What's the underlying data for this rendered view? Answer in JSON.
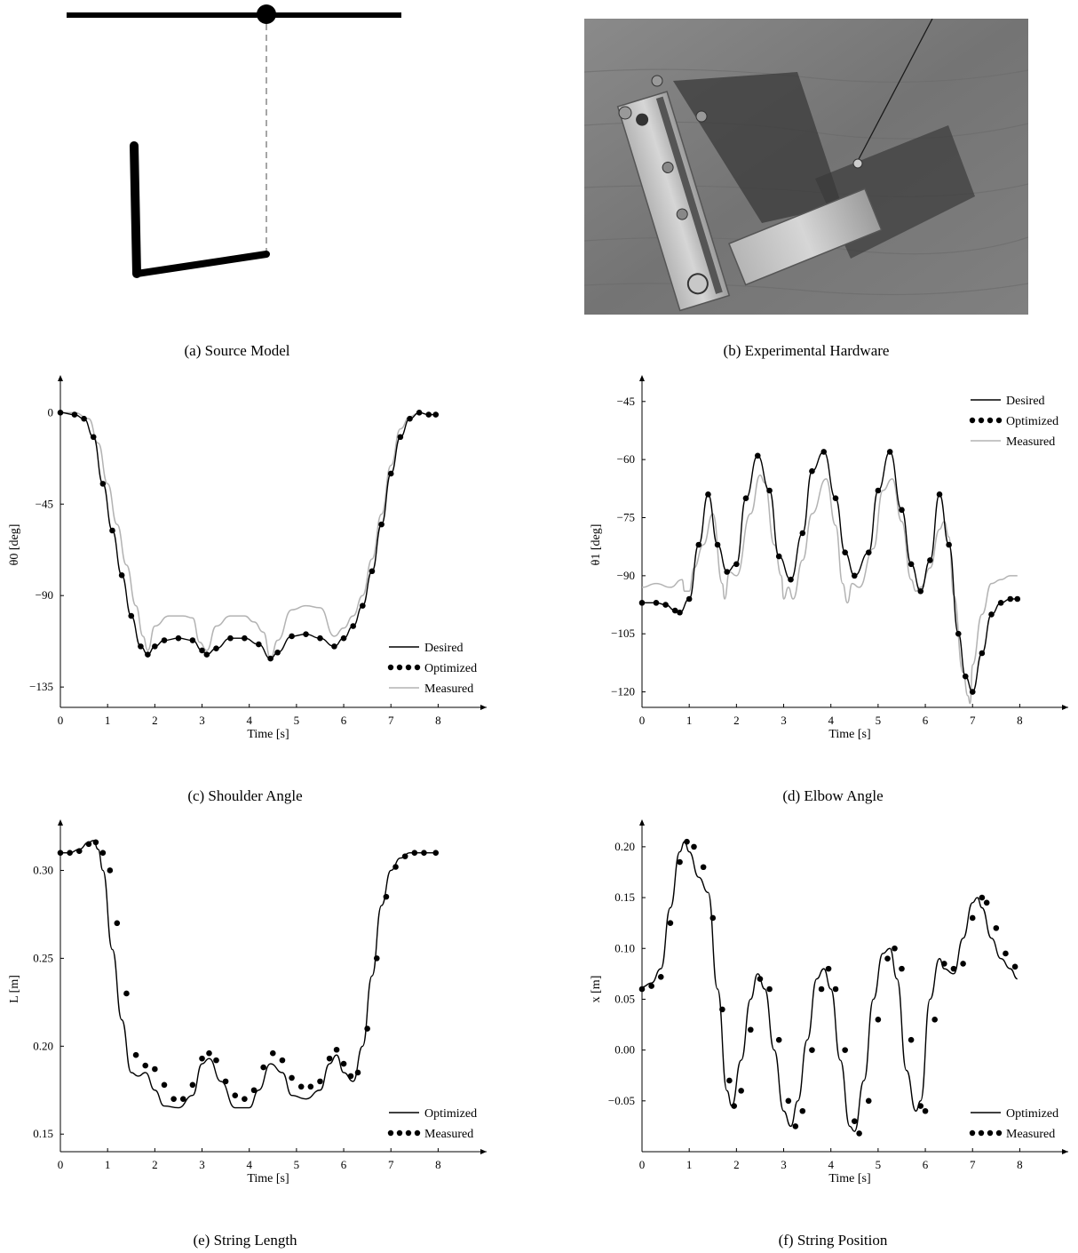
{
  "captions": {
    "a": "(a) Source Model",
    "b": "(b) Experimental Hardware",
    "c": "(c) Shoulder Angle",
    "d": "(d) Elbow Angle",
    "e": "(e) String Length",
    "f": "(f) String Position"
  },
  "chart_data": [
    {
      "id": "c",
      "type": "line",
      "xlabel": "Time [s]",
      "ylabel": "θ0 [deg]",
      "xlim": [
        0,
        8.5
      ],
      "ylim": [
        -145,
        15
      ],
      "xticks": [
        0,
        1,
        2,
        3,
        4,
        5,
        6,
        7,
        8
      ],
      "yticks": [
        0,
        -45,
        -90,
        -135
      ],
      "legend_position": "bottom-right",
      "series": [
        {
          "name": "Desired",
          "style": "solid",
          "color": "#000000",
          "x": [
            0,
            0.3,
            0.5,
            0.7,
            0.9,
            1.1,
            1.3,
            1.5,
            1.7,
            1.85,
            2.0,
            2.2,
            2.5,
            2.8,
            3.0,
            3.1,
            3.3,
            3.6,
            3.9,
            4.2,
            4.45,
            4.6,
            4.9,
            5.2,
            5.5,
            5.8,
            6.0,
            6.2,
            6.4,
            6.6,
            6.8,
            7.0,
            7.2,
            7.4,
            7.6,
            7.8,
            7.95
          ],
          "y": [
            0,
            -1,
            -3,
            -12,
            -35,
            -58,
            -80,
            -100,
            -115,
            -119,
            -115,
            -112,
            -111,
            -112,
            -117,
            -119,
            -116,
            -111,
            -111,
            -114,
            -121,
            -118,
            -110,
            -109,
            -111,
            -115,
            -111,
            -105,
            -95,
            -78,
            -55,
            -30,
            -12,
            -3,
            0,
            -1,
            -1
          ]
        },
        {
          "name": "Optimized",
          "style": "dots",
          "color": "#000000",
          "x": [
            0,
            0.3,
            0.5,
            0.7,
            0.9,
            1.1,
            1.3,
            1.5,
            1.7,
            1.85,
            2.0,
            2.2,
            2.5,
            2.8,
            3.0,
            3.1,
            3.3,
            3.6,
            3.9,
            4.2,
            4.45,
            4.6,
            4.9,
            5.2,
            5.5,
            5.8,
            6.0,
            6.2,
            6.4,
            6.6,
            6.8,
            7.0,
            7.2,
            7.4,
            7.6,
            7.8,
            7.95
          ],
          "y": [
            0,
            -1,
            -3,
            -12,
            -35,
            -58,
            -80,
            -100,
            -115,
            -119,
            -115,
            -112,
            -111,
            -112,
            -117,
            -119,
            -116,
            -111,
            -111,
            -114,
            -121,
            -118,
            -110,
            -109,
            -111,
            -115,
            -111,
            -105,
            -95,
            -78,
            -55,
            -30,
            -12,
            -3,
            0,
            -1,
            -1
          ]
        },
        {
          "name": "Measured",
          "style": "solid",
          "color": "#b3b3b3",
          "x": [
            0,
            0.3,
            0.6,
            0.8,
            1.0,
            1.2,
            1.4,
            1.6,
            1.75,
            1.85,
            2.0,
            2.3,
            2.6,
            2.8,
            2.95,
            3.1,
            3.3,
            3.6,
            3.9,
            4.1,
            4.3,
            4.45,
            4.6,
            4.9,
            5.2,
            5.5,
            5.8,
            6.0,
            6.2,
            6.4,
            6.6,
            6.8,
            7.0,
            7.2,
            7.4,
            7.6,
            7.8,
            7.95
          ],
          "y": [
            0,
            0,
            -3,
            -15,
            -35,
            -55,
            -75,
            -95,
            -110,
            -117,
            -105,
            -100,
            -100,
            -101,
            -113,
            -117,
            -105,
            -100,
            -100,
            -103,
            -108,
            -121,
            -112,
            -97,
            -95,
            -96,
            -110,
            -106,
            -100,
            -90,
            -72,
            -50,
            -26,
            -8,
            -2,
            0,
            -1,
            -1
          ]
        }
      ]
    },
    {
      "id": "d",
      "type": "line",
      "xlabel": "Time [s]",
      "ylabel": "θ1 [deg]",
      "xlim": [
        0,
        8.5
      ],
      "ylim": [
        -124,
        -40
      ],
      "xticks": [
        0,
        1,
        2,
        3,
        4,
        5,
        6,
        7,
        8
      ],
      "yticks": [
        -45,
        -60,
        -75,
        -90,
        -105,
        -120
      ],
      "legend_position": "top-right",
      "series": [
        {
          "name": "Desired",
          "style": "solid",
          "color": "#000000",
          "x": [
            0,
            0.3,
            0.5,
            0.7,
            0.8,
            1.0,
            1.2,
            1.4,
            1.6,
            1.8,
            2.0,
            2.2,
            2.45,
            2.7,
            2.9,
            3.15,
            3.4,
            3.6,
            3.85,
            4.1,
            4.3,
            4.5,
            4.8,
            5.0,
            5.25,
            5.5,
            5.7,
            5.9,
            6.1,
            6.3,
            6.5,
            6.7,
            6.85,
            7.0,
            7.2,
            7.4,
            7.6,
            7.8,
            7.95
          ],
          "y": [
            -97,
            -97,
            -97.5,
            -99,
            -99.5,
            -96,
            -82,
            -69,
            -82,
            -89,
            -87,
            -70,
            -59,
            -68,
            -85,
            -91,
            -79,
            -63,
            -58,
            -70,
            -84,
            -90,
            -84,
            -68,
            -58,
            -73,
            -87,
            -94,
            -86,
            -69,
            -82,
            -105,
            -116,
            -120,
            -110,
            -100,
            -97,
            -96,
            -96
          ]
        },
        {
          "name": "Optimized",
          "style": "dots",
          "color": "#000000",
          "x": [
            0,
            0.3,
            0.5,
            0.7,
            0.8,
            1.0,
            1.2,
            1.4,
            1.6,
            1.8,
            2.0,
            2.2,
            2.45,
            2.7,
            2.9,
            3.15,
            3.4,
            3.6,
            3.85,
            4.1,
            4.3,
            4.5,
            4.8,
            5.0,
            5.25,
            5.5,
            5.7,
            5.9,
            6.1,
            6.3,
            6.5,
            6.7,
            6.85,
            7.0,
            7.2,
            7.4,
            7.6,
            7.8,
            7.95
          ],
          "y": [
            -97,
            -97,
            -97.5,
            -99,
            -99.5,
            -96,
            -82,
            -69,
            -82,
            -89,
            -87,
            -70,
            -59,
            -68,
            -85,
            -91,
            -79,
            -63,
            -58,
            -70,
            -84,
            -90,
            -84,
            -68,
            -58,
            -73,
            -87,
            -94,
            -86,
            -69,
            -82,
            -105,
            -116,
            -120,
            -110,
            -100,
            -97,
            -96,
            -96
          ]
        },
        {
          "name": "Measured",
          "style": "solid",
          "color": "#b3b3b3",
          "x": [
            0,
            0.3,
            0.6,
            0.85,
            0.9,
            1.0,
            1.1,
            1.3,
            1.5,
            1.7,
            1.75,
            1.85,
            2.0,
            2.3,
            2.5,
            2.6,
            2.8,
            2.95,
            3.0,
            3.1,
            3.2,
            3.4,
            3.6,
            3.9,
            4.1,
            4.25,
            4.35,
            4.45,
            4.6,
            4.9,
            5.1,
            5.3,
            5.5,
            5.7,
            5.8,
            5.9,
            6.1,
            6.3,
            6.4,
            6.5,
            6.6,
            6.8,
            6.9,
            6.95,
            7.0,
            7.2,
            7.4,
            7.6,
            7.8,
            7.95
          ],
          "y": [
            -93,
            -92,
            -93,
            -91,
            -94,
            -94,
            -88,
            -82,
            -74,
            -92,
            -96,
            -89,
            -90,
            -74,
            -64,
            -66,
            -82,
            -90,
            -96,
            -93,
            -96,
            -86,
            -74,
            -65,
            -77,
            -92,
            -97,
            -92,
            -93,
            -83,
            -68,
            -65,
            -76,
            -91,
            -94,
            -93,
            -88,
            -78,
            -76,
            -80,
            -95,
            -115,
            -121,
            -123,
            -113,
            -100,
            -92,
            -91,
            -90,
            -90
          ]
        }
      ]
    },
    {
      "id": "e",
      "type": "line",
      "xlabel": "Time [s]",
      "ylabel": "L [m]",
      "xlim": [
        0,
        8.5
      ],
      "ylim": [
        0.14,
        0.325
      ],
      "xticks": [
        0,
        1,
        2,
        3,
        4,
        5,
        6,
        7,
        8
      ],
      "yticks": [
        0.15,
        0.2,
        0.25,
        0.3
      ],
      "legend_position": "bottom-right",
      "series": [
        {
          "name": "Optimized",
          "style": "solid",
          "color": "#000000",
          "x": [
            0,
            0.2,
            0.4,
            0.6,
            0.7,
            0.8,
            0.9,
            1.1,
            1.3,
            1.5,
            1.65,
            1.8,
            2.0,
            2.2,
            2.5,
            2.8,
            3.0,
            3.15,
            3.4,
            3.7,
            4.0,
            4.2,
            4.45,
            4.7,
            4.9,
            5.2,
            5.5,
            5.7,
            5.85,
            6.0,
            6.2,
            6.4,
            6.6,
            6.8,
            7.0,
            7.2,
            7.4,
            7.6,
            7.8,
            7.95
          ],
          "y": [
            0.31,
            0.31,
            0.312,
            0.316,
            0.317,
            0.312,
            0.3,
            0.255,
            0.215,
            0.185,
            0.183,
            0.185,
            0.175,
            0.166,
            0.165,
            0.172,
            0.19,
            0.193,
            0.18,
            0.165,
            0.165,
            0.175,
            0.19,
            0.185,
            0.172,
            0.17,
            0.175,
            0.19,
            0.195,
            0.185,
            0.18,
            0.2,
            0.24,
            0.28,
            0.3,
            0.307,
            0.31,
            0.31,
            0.31,
            0.31
          ]
        },
        {
          "name": "Measured",
          "style": "dots",
          "color": "#000000",
          "x": [
            0,
            0.2,
            0.4,
            0.6,
            0.75,
            0.9,
            1.05,
            1.2,
            1.4,
            1.6,
            1.8,
            2.0,
            2.2,
            2.4,
            2.6,
            2.8,
            3.0,
            3.15,
            3.3,
            3.5,
            3.7,
            3.9,
            4.1,
            4.3,
            4.5,
            4.7,
            4.9,
            5.1,
            5.3,
            5.5,
            5.7,
            5.85,
            6.0,
            6.15,
            6.3,
            6.5,
            6.7,
            6.9,
            7.1,
            7.3,
            7.5,
            7.7,
            7.95
          ],
          "y": [
            0.31,
            0.31,
            0.311,
            0.315,
            0.316,
            0.31,
            0.3,
            0.27,
            0.23,
            0.195,
            0.189,
            0.187,
            0.178,
            0.17,
            0.17,
            0.178,
            0.193,
            0.196,
            0.192,
            0.18,
            0.172,
            0.17,
            0.175,
            0.188,
            0.196,
            0.192,
            0.182,
            0.177,
            0.177,
            0.18,
            0.193,
            0.198,
            0.19,
            0.183,
            0.185,
            0.21,
            0.25,
            0.285,
            0.302,
            0.308,
            0.31,
            0.31,
            0.31
          ]
        }
      ]
    },
    {
      "id": "f",
      "type": "line",
      "xlabel": "Time [s]",
      "ylabel": "x [m]",
      "xlim": [
        0,
        8.5
      ],
      "ylim": [
        -0.1,
        0.22
      ],
      "xticks": [
        0,
        1,
        2,
        3,
        4,
        5,
        6,
        7,
        8
      ],
      "yticks": [
        0.2,
        0.15,
        0.1,
        0.05,
        0.0,
        -0.05
      ],
      "legend_position": "bottom-right",
      "series": [
        {
          "name": "Optimized",
          "style": "solid",
          "color": "#000000",
          "x": [
            0,
            0.2,
            0.4,
            0.6,
            0.8,
            0.9,
            1.0,
            1.2,
            1.4,
            1.6,
            1.8,
            1.9,
            2.1,
            2.3,
            2.45,
            2.6,
            2.8,
            3.0,
            3.15,
            3.3,
            3.5,
            3.7,
            3.85,
            4.0,
            4.2,
            4.4,
            4.5,
            4.7,
            4.9,
            5.1,
            5.25,
            5.4,
            5.6,
            5.8,
            5.9,
            6.1,
            6.3,
            6.4,
            6.6,
            6.8,
            7.0,
            7.1,
            7.2,
            7.4,
            7.6,
            7.8,
            7.95
          ],
          "y": [
            0.062,
            0.066,
            0.08,
            0.14,
            0.195,
            0.205,
            0.195,
            0.17,
            0.155,
            0.06,
            -0.04,
            -0.055,
            -0.01,
            0.05,
            0.075,
            0.06,
            0.0,
            -0.06,
            -0.075,
            -0.05,
            0.01,
            0.07,
            0.08,
            0.06,
            -0.01,
            -0.075,
            -0.08,
            -0.03,
            0.05,
            0.095,
            0.1,
            0.07,
            -0.02,
            -0.06,
            -0.05,
            0.05,
            0.09,
            0.08,
            0.075,
            0.11,
            0.145,
            0.15,
            0.14,
            0.11,
            0.09,
            0.08,
            0.07
          ]
        },
        {
          "name": "Measured",
          "style": "dots",
          "color": "#000000",
          "x": [
            0,
            0.2,
            0.4,
            0.6,
            0.8,
            0.95,
            1.1,
            1.3,
            1.5,
            1.7,
            1.85,
            1.95,
            2.1,
            2.3,
            2.5,
            2.7,
            2.9,
            3.1,
            3.25,
            3.4,
            3.6,
            3.8,
            3.95,
            4.1,
            4.3,
            4.5,
            4.6,
            4.8,
            5.0,
            5.2,
            5.35,
            5.5,
            5.7,
            5.9,
            6.0,
            6.2,
            6.4,
            6.6,
            6.8,
            7.0,
            7.2,
            7.3,
            7.5,
            7.7,
            7.9
          ],
          "y": [
            0.06,
            0.063,
            0.072,
            0.125,
            0.185,
            0.205,
            0.2,
            0.18,
            0.13,
            0.04,
            -0.03,
            -0.055,
            -0.04,
            0.02,
            0.07,
            0.06,
            0.01,
            -0.05,
            -0.075,
            -0.06,
            0.0,
            0.06,
            0.08,
            0.06,
            0.0,
            -0.07,
            -0.082,
            -0.05,
            0.03,
            0.09,
            0.1,
            0.08,
            0.01,
            -0.055,
            -0.06,
            0.03,
            0.085,
            0.08,
            0.085,
            0.13,
            0.15,
            0.145,
            0.12,
            0.095,
            0.082
          ]
        }
      ]
    }
  ]
}
